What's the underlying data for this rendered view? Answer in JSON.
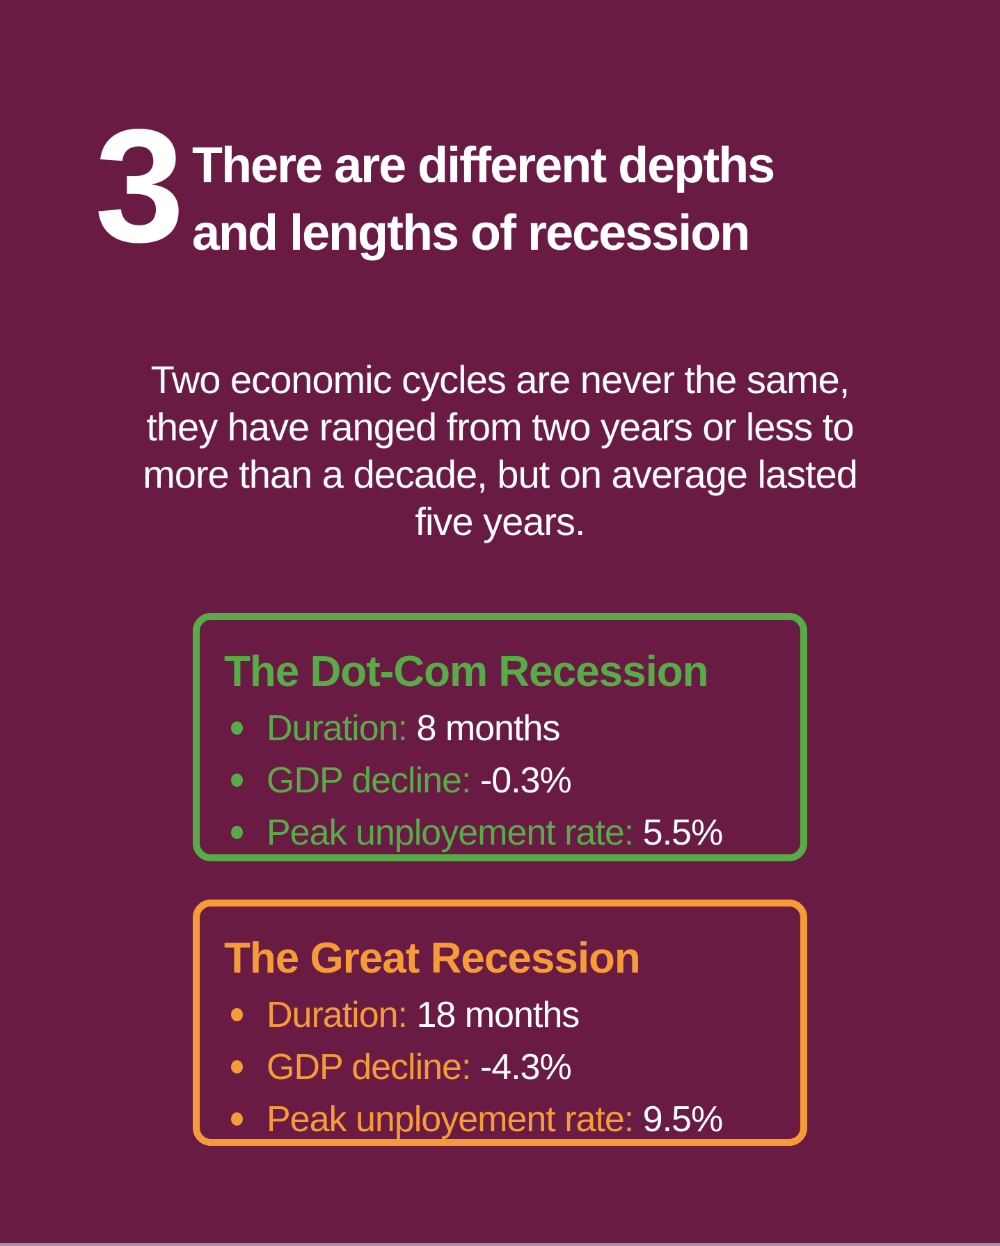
{
  "page": {
    "background_color": "#691b44",
    "text_color": "#ffffff",
    "accent_green": "#58ac48",
    "accent_orange": "#f59c38",
    "footer_strip_color": "#a492a9"
  },
  "header": {
    "number": "3",
    "title_line1": "There are different depths",
    "title_line2": "and lengths of recession"
  },
  "intro": {
    "lines": [
      "Two economic cycles are never the same,",
      "they have ranged from two years or less to",
      "more than a decade, but on average lasted",
      "five years."
    ]
  },
  "cards": [
    {
      "title": "The Dot-Com Recession",
      "accent_color": "#58ac48",
      "items": [
        {
          "label": "Duration: ",
          "value": "8 months"
        },
        {
          "label": "GDP decline: ",
          "value": "-0.3%"
        },
        {
          "label": "Peak unployement rate: ",
          "value": "5.5%"
        }
      ]
    },
    {
      "title": "The Great Recession",
      "accent_color": "#f59c38",
      "items": [
        {
          "label": "Duration: ",
          "value": "18 months"
        },
        {
          "label": "GDP decline: ",
          "value": "-4.3%"
        },
        {
          "label": "Peak unployement rate: ",
          "value": "9.5%"
        }
      ]
    }
  ]
}
